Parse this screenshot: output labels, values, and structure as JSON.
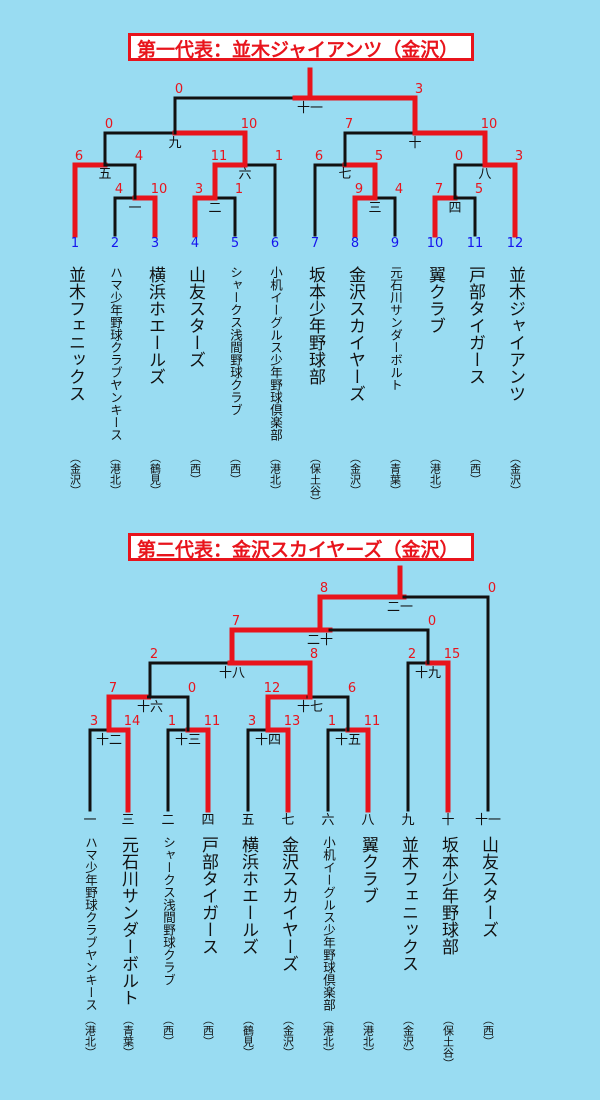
{
  "colors": {
    "background": "#99dcf2",
    "winner_path": "#e8141c",
    "line": "#111111",
    "number": "#1515ee"
  },
  "bracket1": {
    "title": "第一代表：並木ジャイアンツ（金沢）",
    "teams": [
      {
        "num": "1",
        "name": "並木フェニックス",
        "area": "（金沢）"
      },
      {
        "num": "2",
        "name": "ハマ少年野球クラブヤンキース",
        "area": "（港北）"
      },
      {
        "num": "3",
        "name": "横浜ホエールズ",
        "area": "（鶴見）"
      },
      {
        "num": "4",
        "name": "山友スターズ",
        "area": "（西）"
      },
      {
        "num": "5",
        "name": "シャークス浅間野球クラブ",
        "area": "（西）"
      },
      {
        "num": "6",
        "name": "小机イーグルス少年野球倶楽部",
        "area": "（港北）"
      },
      {
        "num": "7",
        "name": "坂本少年野球部",
        "area": "（保土谷）"
      },
      {
        "num": "8",
        "name": "金沢スカイヤーズ",
        "area": "（金沢）"
      },
      {
        "num": "9",
        "name": "元石川サンダーボルト",
        "area": "（青葉）"
      },
      {
        "num": "10",
        "name": "翼クラブ",
        "area": "（港北）"
      },
      {
        "num": "11",
        "name": "戸部タイガース",
        "area": "（西）"
      },
      {
        "num": "12",
        "name": "並木ジャイアンツ",
        "area": "（金沢）"
      }
    ],
    "matches": [
      {
        "label": "一",
        "left": "4",
        "right": "10"
      },
      {
        "label": "二",
        "left": "3",
        "right": "1"
      },
      {
        "label": "三",
        "left": "9",
        "right": "4"
      },
      {
        "label": "四",
        "left": "7",
        "right": "5"
      },
      {
        "label": "五",
        "left": "6",
        "right": "4"
      },
      {
        "label": "六",
        "left": "11",
        "right": "1"
      },
      {
        "label": "七",
        "left": "6",
        "right": "5"
      },
      {
        "label": "八",
        "left": "0",
        "right": "3"
      },
      {
        "label": "九",
        "left": "0",
        "right": "10"
      },
      {
        "label": "十",
        "left": "7",
        "right": "10"
      },
      {
        "label": "十一",
        "left": "0",
        "right": "3"
      }
    ]
  },
  "bracket2": {
    "title": "第二代表：金沢スカイヤーズ（金沢）",
    "teams": [
      {
        "num": "一",
        "name": "ハマ少年野球クラブヤンキース",
        "area": "（港北）"
      },
      {
        "num": "三",
        "name": "元石川サンダーボルト",
        "area": "（青葉）"
      },
      {
        "num": "二",
        "name": "シャークス浅間野球クラブ",
        "area": "（西）"
      },
      {
        "num": "四",
        "name": "戸部タイガース",
        "area": "（西）"
      },
      {
        "num": "五",
        "name": "横浜ホエールズ",
        "area": "（鶴見）"
      },
      {
        "num": "七",
        "name": "金沢スカイヤーズ",
        "area": "（金沢）"
      },
      {
        "num": "六",
        "name": "小机イーグルス少年野球倶楽部",
        "area": "（港北）"
      },
      {
        "num": "八",
        "name": "翼クラブ",
        "area": "（港北）"
      },
      {
        "num": "九",
        "name": "並木フェニックス",
        "area": "（金沢）"
      },
      {
        "num": "十",
        "name": "坂本少年野球部",
        "area": "（保土谷）"
      },
      {
        "num": "十一",
        "name": "山友スターズ",
        "area": "（西）"
      }
    ],
    "matches": [
      {
        "label": "十二",
        "left": "3",
        "right": "14"
      },
      {
        "label": "十三",
        "left": "1",
        "right": "11"
      },
      {
        "label": "十四",
        "left": "3",
        "right": "13"
      },
      {
        "label": "十五",
        "left": "1",
        "right": "11"
      },
      {
        "label": "十六",
        "left": "7",
        "right": "0"
      },
      {
        "label": "十七",
        "left": "12",
        "right": "6"
      },
      {
        "label": "十八",
        "left": "2",
        "right": "8"
      },
      {
        "label": "十九",
        "left": "2",
        "right": "15"
      },
      {
        "label": "二十",
        "left": "7",
        "right": "0"
      },
      {
        "label": "二一",
        "left": "8",
        "right": "0"
      }
    ]
  }
}
